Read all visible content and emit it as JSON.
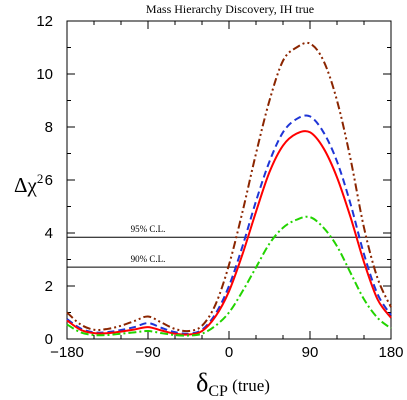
{
  "chart_data": {
    "type": "line",
    "title": "Mass Hierarchy Discovery, IH true",
    "xlabel_main": "δ",
    "xlabel_sub": "CP",
    "xlabel_suffix": " (true)",
    "ylabel_main": "Δχ",
    "ylabel_sup": "2",
    "xlim": [
      -180,
      180
    ],
    "ylim": [
      0,
      12
    ],
    "xticks": [
      -180,
      -90,
      0,
      90,
      180
    ],
    "xtick_labels": [
      "−180",
      "−90",
      "0",
      "90",
      "180"
    ],
    "yticks": [
      0,
      2,
      4,
      6,
      8,
      10,
      12
    ],
    "ytick_labels": [
      "0",
      "2",
      "4",
      "6",
      "8",
      "10",
      "12"
    ],
    "grid": false,
    "annotations": [
      {
        "label": "95% C.L.",
        "y": 3.84
      },
      {
        "label": "90% C.L.",
        "y": 2.71
      }
    ],
    "x": [
      -180,
      -165,
      -150,
      -135,
      -120,
      -105,
      -90,
      -75,
      -60,
      -45,
      -30,
      -15,
      0,
      15,
      30,
      45,
      60,
      75,
      90,
      105,
      120,
      135,
      150,
      165,
      180
    ],
    "series": [
      {
        "color": "#8b2500",
        "dash": "8,3,2,3,2,3",
        "values": [
          1.0,
          0.55,
          0.35,
          0.38,
          0.5,
          0.68,
          0.85,
          0.62,
          0.38,
          0.3,
          0.5,
          1.3,
          2.8,
          4.8,
          7.0,
          9.0,
          10.5,
          11.0,
          11.15,
          10.5,
          9.0,
          6.8,
          4.2,
          2.3,
          1.2
        ]
      },
      {
        "color": "#1f35d6",
        "dash": "7,4",
        "values": [
          0.75,
          0.4,
          0.25,
          0.26,
          0.34,
          0.45,
          0.6,
          0.42,
          0.26,
          0.2,
          0.35,
          0.95,
          2.0,
          3.5,
          5.2,
          6.7,
          7.8,
          8.3,
          8.4,
          7.8,
          6.7,
          5.1,
          3.2,
          1.7,
          0.9
        ]
      },
      {
        "color": "#ff0000",
        "dash": "",
        "values": [
          0.7,
          0.35,
          0.22,
          0.22,
          0.28,
          0.36,
          0.45,
          0.32,
          0.2,
          0.17,
          0.3,
          0.85,
          1.8,
          3.2,
          4.8,
          6.3,
          7.3,
          7.75,
          7.8,
          7.2,
          6.1,
          4.6,
          2.9,
          1.5,
          0.8
        ]
      },
      {
        "color": "#22d400",
        "dash": "8,3,2,3",
        "values": [
          0.55,
          0.25,
          0.15,
          0.15,
          0.2,
          0.25,
          0.3,
          0.22,
          0.15,
          0.13,
          0.2,
          0.5,
          1.0,
          1.8,
          2.7,
          3.6,
          4.2,
          4.5,
          4.6,
          4.2,
          3.5,
          2.5,
          1.5,
          0.8,
          0.4
        ]
      }
    ]
  }
}
